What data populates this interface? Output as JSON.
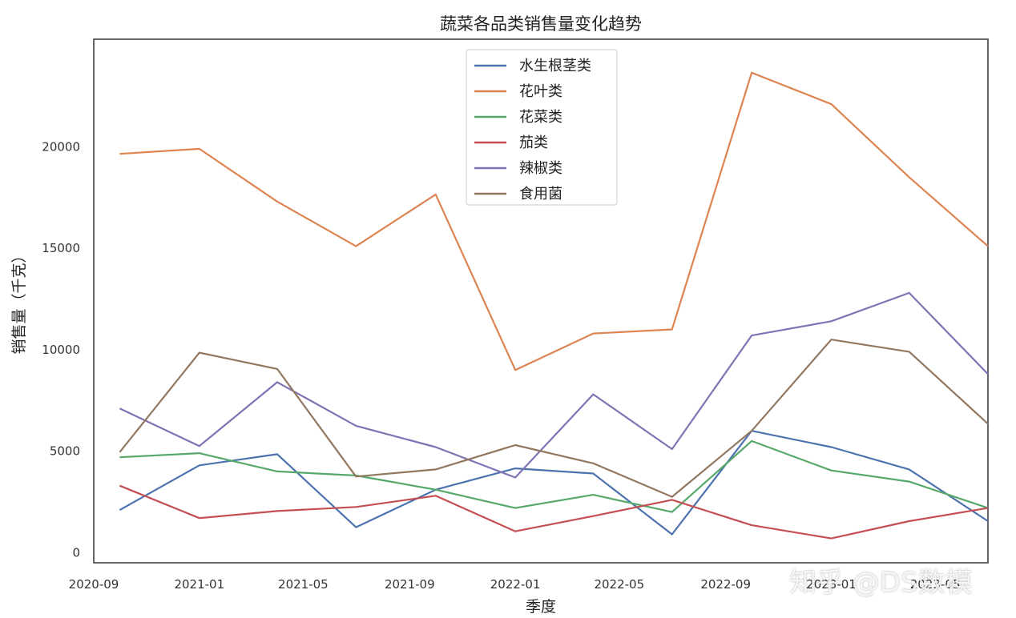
{
  "chart_data": {
    "type": "line",
    "title": "蔬菜各品类销售量变化趋势",
    "xlabel": "季度",
    "ylabel": "销售量（千克）",
    "x": [
      "2020-10-01",
      "2021-01-01",
      "2021-04-01",
      "2021-07-01",
      "2021-10-01",
      "2022-01-01",
      "2022-04-01",
      "2022-07-01",
      "2022-10-01",
      "2023-01-01",
      "2023-04-01",
      "2023-07-01"
    ],
    "x_range": [
      "2020-09-01",
      "2023-07-01"
    ],
    "xticks": [
      "2020-09",
      "2021-01",
      "2021-05",
      "2021-09",
      "2022-01",
      "2022-05",
      "2022-09",
      "2023-01",
      "2023-05"
    ],
    "ylim": [
      -500,
      25300
    ],
    "yticks": [
      0,
      5000,
      10000,
      15000,
      20000
    ],
    "grid": false,
    "legend_position": "top-center",
    "series": [
      {
        "name": "水生根茎类",
        "color": "#4C72B0",
        "values": [
          2100,
          4300,
          4850,
          1250,
          3100,
          4150,
          3900,
          900,
          6000,
          5200,
          4100,
          1550
        ]
      },
      {
        "name": "花叶类",
        "color": "#DD8452",
        "values": [
          19650,
          19900,
          17300,
          15100,
          17650,
          9000,
          10800,
          11000,
          23650,
          22100,
          18500,
          15100
        ]
      },
      {
        "name": "花菜类",
        "color": "#55A868",
        "values": [
          4700,
          4900,
          4000,
          3800,
          3100,
          2200,
          2850,
          2000,
          5500,
          4050,
          3500,
          2200
        ]
      },
      {
        "name": "茄类",
        "color": "#C44E52",
        "values": [
          3300,
          1700,
          2050,
          2250,
          2800,
          1050,
          1800,
          2600,
          1350,
          700,
          1550,
          2200
        ]
      },
      {
        "name": "辣椒类",
        "color": "#8172B3",
        "values": [
          7100,
          5250,
          8400,
          6250,
          5200,
          3700,
          7800,
          5100,
          10700,
          11400,
          12800,
          8800
        ]
      },
      {
        "name": "食用菌",
        "color": "#937860",
        "values": [
          4950,
          9850,
          9050,
          3750,
          4100,
          5300,
          4400,
          2750,
          6000,
          10500,
          9900,
          6350
        ]
      }
    ]
  },
  "watermark": "知乎 @DS数模"
}
